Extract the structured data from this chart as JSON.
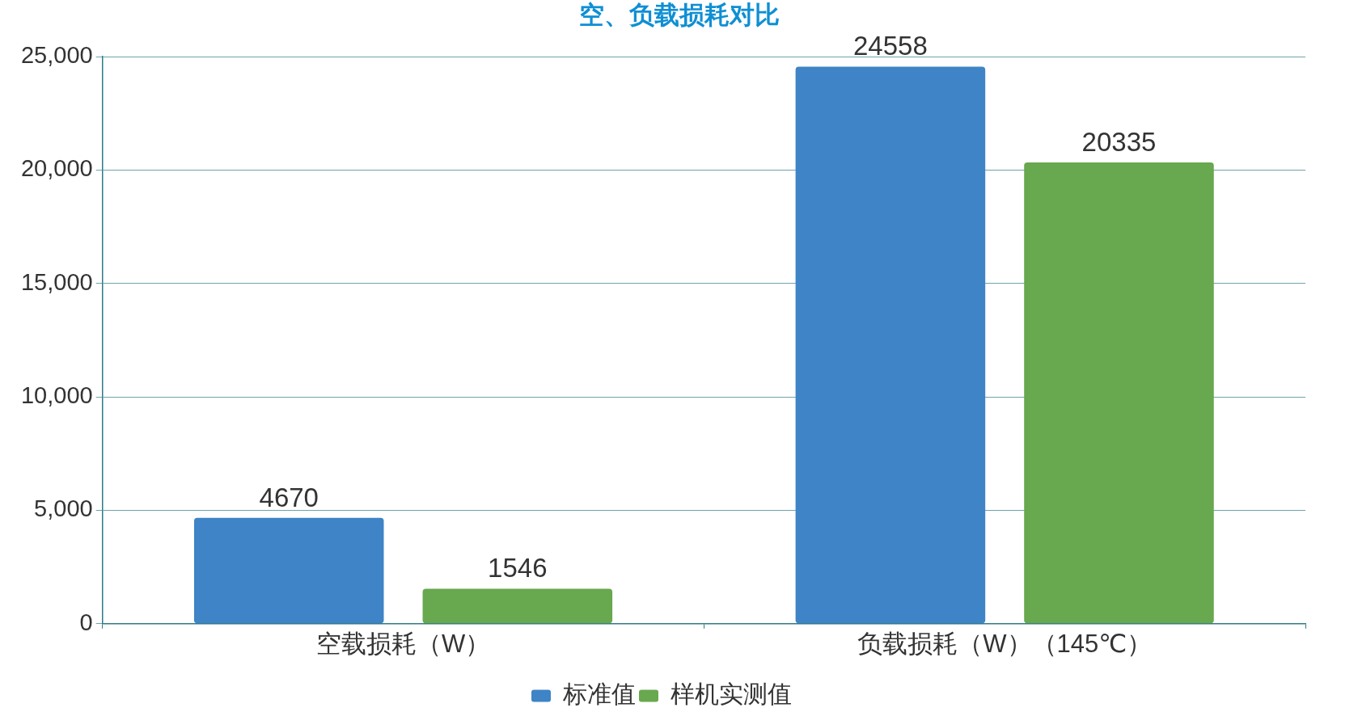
{
  "chart_data": {
    "type": "bar",
    "title": "空、负载损耗对比",
    "categories": [
      "空载损耗（W）",
      "负载损耗（W）（145℃）"
    ],
    "series": [
      {
        "name": "标准值",
        "color": "#3e84c6",
        "values": [
          4670,
          24558
        ]
      },
      {
        "name": "样机实测值",
        "color": "#68a84e",
        "values": [
          1546,
          20335
        ]
      }
    ],
    "ylim": [
      0,
      25000
    ],
    "yticks": [
      0,
      {
        "value": 5000,
        "label": "5,000"
      },
      {
        "value": 10000,
        "label": "10,000"
      },
      {
        "value": 15000,
        "label": "15,000"
      },
      {
        "value": 20000,
        "label": "20,000"
      },
      {
        "value": 25000,
        "label": "25,000"
      }
    ],
    "grid": "y",
    "legend": "bottom",
    "data_labels": true
  }
}
